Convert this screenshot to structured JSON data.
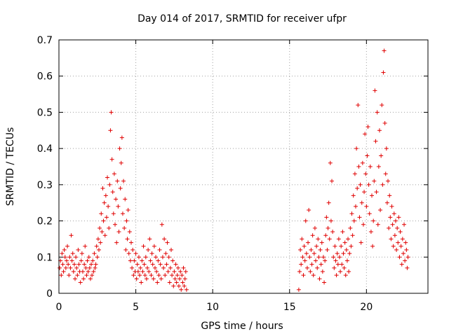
{
  "chart_data": {
    "type": "scatter",
    "title": "Day 014 of 2017, SRMTID for receiver ufpr",
    "xlabel": "GPS time / hours",
    "ylabel": "SRMTID / TECUs",
    "xlim": [
      0,
      24
    ],
    "ylim": [
      0,
      0.7
    ],
    "xticks": [
      0,
      5,
      10,
      15,
      20
    ],
    "yticks": [
      0,
      0.1,
      0.2,
      0.3,
      0.4,
      0.5,
      0.6,
      0.7
    ],
    "xtick_labels": [
      "0",
      "5",
      "10",
      "15",
      "20"
    ],
    "ytick_labels": [
      "0",
      "0.1",
      "0.2",
      "0.3",
      "0.4",
      "0.5",
      "0.6",
      "0.7"
    ],
    "grid": true,
    "marker": "+",
    "color": "#e00000",
    "series": [
      {
        "name": "ufpr",
        "points": [
          [
            0.05,
            0.07
          ],
          [
            0.1,
            0.09
          ],
          [
            0.15,
            0.05
          ],
          [
            0.2,
            0.11
          ],
          [
            0.25,
            0.08
          ],
          [
            0.3,
            0.06
          ],
          [
            0.35,
            0.12
          ],
          [
            0.4,
            0.1
          ],
          [
            0.45,
            0.07
          ],
          [
            0.5,
            0.09
          ],
          [
            0.55,
            0.13
          ],
          [
            0.6,
            0.08
          ],
          [
            0.65,
            0.05
          ],
          [
            0.7,
            0.1
          ],
          [
            0.75,
            0.07
          ],
          [
            0.8,
            0.16
          ],
          [
            0.85,
            0.09
          ],
          [
            0.9,
            0.11
          ],
          [
            0.95,
            0.06
          ],
          [
            1.0,
            0.08
          ],
          [
            1.05,
            0.04
          ],
          [
            1.1,
            0.1
          ],
          [
            1.15,
            0.07
          ],
          [
            1.2,
            0.05
          ],
          [
            1.25,
            0.12
          ],
          [
            1.3,
            0.08
          ],
          [
            1.35,
            0.06
          ],
          [
            1.4,
            0.03
          ],
          [
            1.45,
            0.09
          ],
          [
            1.5,
            0.11
          ],
          [
            1.55,
            0.06
          ],
          [
            1.6,
            0.04
          ],
          [
            1.65,
            0.08
          ],
          [
            1.7,
            0.13
          ],
          [
            1.75,
            0.07
          ],
          [
            1.8,
            0.05
          ],
          [
            1.85,
            0.09
          ],
          [
            1.9,
            0.06
          ],
          [
            1.95,
            0.1
          ],
          [
            2.0,
            0.07
          ],
          [
            2.05,
            0.04
          ],
          [
            2.1,
            0.08
          ],
          [
            2.15,
            0.05
          ],
          [
            2.2,
            0.09
          ],
          [
            2.25,
            0.06
          ],
          [
            2.3,
            0.11
          ],
          [
            2.35,
            0.07
          ],
          [
            2.4,
            0.08
          ],
          [
            2.45,
            0.13
          ],
          [
            2.5,
            0.1
          ],
          [
            2.55,
            0.15
          ],
          [
            2.6,
            0.12
          ],
          [
            2.65,
            0.18
          ],
          [
            2.7,
            0.14
          ],
          [
            2.75,
            0.22
          ],
          [
            2.8,
            0.17
          ],
          [
            2.85,
            0.29
          ],
          [
            2.9,
            0.2
          ],
          [
            2.95,
            0.25
          ],
          [
            3.0,
            0.16
          ],
          [
            3.05,
            0.27
          ],
          [
            3.1,
            0.21
          ],
          [
            3.15,
            0.32
          ],
          [
            3.2,
            0.24
          ],
          [
            3.25,
            0.18
          ],
          [
            3.3,
            0.3
          ],
          [
            3.35,
            0.45
          ],
          [
            3.4,
            0.5
          ],
          [
            3.45,
            0.37
          ],
          [
            3.5,
            0.28
          ],
          [
            3.55,
            0.22
          ],
          [
            3.6,
            0.33
          ],
          [
            3.65,
            0.19
          ],
          [
            3.7,
            0.26
          ],
          [
            3.75,
            0.14
          ],
          [
            3.8,
            0.31
          ],
          [
            3.85,
            0.24
          ],
          [
            3.9,
            0.17
          ],
          [
            3.95,
            0.4
          ],
          [
            4.0,
            0.29
          ],
          [
            4.05,
            0.36
          ],
          [
            4.1,
            0.43
          ],
          [
            4.15,
            0.22
          ],
          [
            4.2,
            0.31
          ],
          [
            4.25,
            0.18
          ],
          [
            4.3,
            0.26
          ],
          [
            4.35,
            0.12
          ],
          [
            4.4,
            0.2
          ],
          [
            4.45,
            0.15
          ],
          [
            4.5,
            0.23
          ],
          [
            4.55,
            0.11
          ],
          [
            4.6,
            0.17
          ],
          [
            4.65,
            0.09
          ],
          [
            4.7,
            0.14
          ],
          [
            4.75,
            0.07
          ],
          [
            4.8,
            0.12
          ],
          [
            4.85,
            0.05
          ],
          [
            4.9,
            0.09
          ],
          [
            4.95,
            0.06
          ],
          [
            5.0,
            0.11
          ],
          [
            5.05,
            0.04
          ],
          [
            5.1,
            0.08
          ],
          [
            5.15,
            0.06
          ],
          [
            5.2,
            0.1
          ],
          [
            5.25,
            0.05
          ],
          [
            5.3,
            0.07
          ],
          [
            5.35,
            0.03
          ],
          [
            5.4,
            0.09
          ],
          [
            5.45,
            0.06
          ],
          [
            5.5,
            0.13
          ],
          [
            5.55,
            0.08
          ],
          [
            5.6,
            0.05
          ],
          [
            5.65,
            0.1
          ],
          [
            5.7,
            0.04
          ],
          [
            5.75,
            0.07
          ],
          [
            5.8,
            0.12
          ],
          [
            5.85,
            0.06
          ],
          [
            5.9,
            0.15
          ],
          [
            5.95,
            0.09
          ],
          [
            6.0,
            0.05
          ],
          [
            6.05,
            0.11
          ],
          [
            6.1,
            0.08
          ],
          [
            6.15,
            0.04
          ],
          [
            6.2,
            0.13
          ],
          [
            6.25,
            0.07
          ],
          [
            6.3,
            0.1
          ],
          [
            6.35,
            0.06
          ],
          [
            6.4,
            0.03
          ],
          [
            6.45,
            0.09
          ],
          [
            6.5,
            0.05
          ],
          [
            6.55,
            0.12
          ],
          [
            6.6,
            0.08
          ],
          [
            6.65,
            0.04
          ],
          [
            6.7,
            0.19
          ],
          [
            6.75,
            0.1
          ],
          [
            6.8,
            0.07
          ],
          [
            6.85,
            0.15
          ],
          [
            6.9,
            0.05
          ],
          [
            6.95,
            0.11
          ],
          [
            7.0,
            0.08
          ],
          [
            7.05,
            0.14
          ],
          [
            7.1,
            0.06
          ],
          [
            7.15,
            0.1
          ],
          [
            7.2,
            0.03
          ],
          [
            7.25,
            0.07
          ],
          [
            7.3,
            0.12
          ],
          [
            7.35,
            0.05
          ],
          [
            7.4,
            0.09
          ],
          [
            7.45,
            0.02
          ],
          [
            7.5,
            0.06
          ],
          [
            7.55,
            0.04
          ],
          [
            7.6,
            0.08
          ],
          [
            7.65,
            0.03
          ],
          [
            7.7,
            0.05
          ],
          [
            7.75,
            0.07
          ],
          [
            7.8,
            0.02
          ],
          [
            7.85,
            0.04
          ],
          [
            7.9,
            0.06
          ],
          [
            7.95,
            0.01
          ],
          [
            8.0,
            0.05
          ],
          [
            8.05,
            0.03
          ],
          [
            8.1,
            0.07
          ],
          [
            8.15,
            0.02
          ],
          [
            8.2,
            0.04
          ],
          [
            8.25,
            0.06
          ],
          [
            8.3,
            0.01
          ],
          [
            15.6,
            0.01
          ],
          [
            15.65,
            0.06
          ],
          [
            15.7,
            0.12
          ],
          [
            15.75,
            0.08
          ],
          [
            15.8,
            0.15
          ],
          [
            15.85,
            0.1
          ],
          [
            15.9,
            0.05
          ],
          [
            15.95,
            0.13
          ],
          [
            16.0,
            0.09
          ],
          [
            16.05,
            0.2
          ],
          [
            16.1,
            0.11
          ],
          [
            16.15,
            0.07
          ],
          [
            16.2,
            0.14
          ],
          [
            16.25,
            0.23
          ],
          [
            16.3,
            0.1
          ],
          [
            16.35,
            0.06
          ],
          [
            16.4,
            0.12
          ],
          [
            16.45,
            0.08
          ],
          [
            16.5,
            0.16
          ],
          [
            16.55,
            0.05
          ],
          [
            16.6,
            0.11
          ],
          [
            16.65,
            0.18
          ],
          [
            16.7,
            0.09
          ],
          [
            16.75,
            0.13
          ],
          [
            16.8,
            0.07
          ],
          [
            16.85,
            0.15
          ],
          [
            16.9,
            0.1
          ],
          [
            16.95,
            0.04
          ],
          [
            17.0,
            0.12
          ],
          [
            17.05,
            0.08
          ],
          [
            17.1,
            0.14
          ],
          [
            17.15,
            0.06
          ],
          [
            17.2,
            0.1
          ],
          [
            17.25,
            0.03
          ],
          [
            17.3,
            0.09
          ],
          [
            17.35,
            0.16
          ],
          [
            17.4,
            0.21
          ],
          [
            17.45,
            0.12
          ],
          [
            17.5,
            0.18
          ],
          [
            17.55,
            0.25
          ],
          [
            17.6,
            0.15
          ],
          [
            17.65,
            0.36
          ],
          [
            17.7,
            0.2
          ],
          [
            17.75,
            0.31
          ],
          [
            17.8,
            0.17
          ],
          [
            17.85,
            0.1
          ],
          [
            17.9,
            0.07
          ],
          [
            17.95,
            0.13
          ],
          [
            18.0,
            0.09
          ],
          [
            18.05,
            0.05
          ],
          [
            18.1,
            0.11
          ],
          [
            18.15,
            0.08
          ],
          [
            18.2,
            0.15
          ],
          [
            18.25,
            0.1
          ],
          [
            18.3,
            0.06
          ],
          [
            18.35,
            0.13
          ],
          [
            18.4,
            0.08
          ],
          [
            18.45,
            0.17
          ],
          [
            18.5,
            0.11
          ],
          [
            18.55,
            0.07
          ],
          [
            18.6,
            0.14
          ],
          [
            18.65,
            0.05
          ],
          [
            18.7,
            0.12
          ],
          [
            18.75,
            0.09
          ],
          [
            18.8,
            0.15
          ],
          [
            18.85,
            0.06
          ],
          [
            18.9,
            0.11
          ],
          [
            18.95,
            0.18
          ],
          [
            19.0,
            0.13
          ],
          [
            19.05,
            0.22
          ],
          [
            19.1,
            0.16
          ],
          [
            19.15,
            0.27
          ],
          [
            19.2,
            0.2
          ],
          [
            19.25,
            0.33
          ],
          [
            19.3,
            0.24
          ],
          [
            19.35,
            0.4
          ],
          [
            19.4,
            0.29
          ],
          [
            19.45,
            0.52
          ],
          [
            19.5,
            0.35
          ],
          [
            19.55,
            0.21
          ],
          [
            19.6,
            0.3
          ],
          [
            19.65,
            0.14
          ],
          [
            19.7,
            0.25
          ],
          [
            19.75,
            0.36
          ],
          [
            19.8,
            0.19
          ],
          [
            19.85,
            0.28
          ],
          [
            19.9,
            0.44
          ],
          [
            19.95,
            0.33
          ],
          [
            20.0,
            0.24
          ],
          [
            20.05,
            0.38
          ],
          [
            20.1,
            0.46
          ],
          [
            20.15,
            0.3
          ],
          [
            20.2,
            0.22
          ],
          [
            20.25,
            0.35
          ],
          [
            20.3,
            0.17
          ],
          [
            20.35,
            0.27
          ],
          [
            20.4,
            0.13
          ],
          [
            20.45,
            0.2
          ],
          [
            20.5,
            0.31
          ],
          [
            20.55,
            0.56
          ],
          [
            20.6,
            0.42
          ],
          [
            20.65,
            0.28
          ],
          [
            20.7,
            0.5
          ],
          [
            20.75,
            0.19
          ],
          [
            20.8,
            0.35
          ],
          [
            20.85,
            0.45
          ],
          [
            20.9,
            0.23
          ],
          [
            20.95,
            0.38
          ],
          [
            21.0,
            0.52
          ],
          [
            21.05,
            0.3
          ],
          [
            21.1,
            0.61
          ],
          [
            21.15,
            0.67
          ],
          [
            21.2,
            0.47
          ],
          [
            21.25,
            0.33
          ],
          [
            21.3,
            0.4
          ],
          [
            21.35,
            0.25
          ],
          [
            21.4,
            0.31
          ],
          [
            21.45,
            0.18
          ],
          [
            21.5,
            0.27
          ],
          [
            21.55,
            0.21
          ],
          [
            21.6,
            0.15
          ],
          [
            21.65,
            0.24
          ],
          [
            21.7,
            0.19
          ],
          [
            21.75,
            0.13
          ],
          [
            21.8,
            0.22
          ],
          [
            21.85,
            0.16
          ],
          [
            21.9,
            0.2
          ],
          [
            21.95,
            0.12
          ],
          [
            22.0,
            0.18
          ],
          [
            22.05,
            0.14
          ],
          [
            22.1,
            0.21
          ],
          [
            22.15,
            0.1
          ],
          [
            22.2,
            0.17
          ],
          [
            22.25,
            0.13
          ],
          [
            22.3,
            0.08
          ],
          [
            22.35,
            0.15
          ],
          [
            22.4,
            0.11
          ],
          [
            22.45,
            0.19
          ],
          [
            22.5,
            0.09
          ],
          [
            22.55,
            0.14
          ],
          [
            22.6,
            0.12
          ],
          [
            22.65,
            0.07
          ],
          [
            22.7,
            0.1
          ]
        ]
      }
    ]
  }
}
